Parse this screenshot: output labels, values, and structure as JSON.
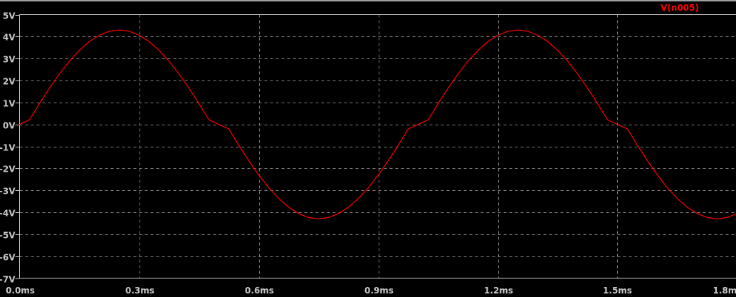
{
  "chart_data": {
    "type": "line",
    "title": "",
    "xlabel": "",
    "ylabel": "",
    "xlim": [
      0.0,
      1.8
    ],
    "ylim": [
      -7,
      5
    ],
    "x_unit": "ms",
    "y_unit": "V",
    "grid": true,
    "legend_position": "top-right",
    "x_ticks": [
      "0.0ms",
      "0.3ms",
      "0.6ms",
      "0.9ms",
      "1.2ms",
      "1.5ms",
      "1.8ms"
    ],
    "x_tick_values": [
      0.0,
      0.3,
      0.6,
      0.9,
      1.2,
      1.5,
      1.8
    ],
    "y_ticks": [
      "5V",
      "4V",
      "3V",
      "2V",
      "1V",
      "0V",
      "-1V",
      "-2V",
      "-3V",
      "-4V",
      "-5V",
      "-6V",
      "-7V"
    ],
    "y_tick_values": [
      5,
      4,
      3,
      2,
      1,
      0,
      -1,
      -2,
      -3,
      -4,
      -5,
      -6,
      -7
    ],
    "series": [
      {
        "name": "V(n005)",
        "color": "#ff0000",
        "x": [
          0,
          0.025,
          0.05,
          0.075,
          0.1,
          0.125,
          0.15,
          0.175,
          0.2,
          0.225,
          0.25,
          0.275,
          0.3,
          0.325,
          0.35,
          0.375,
          0.4,
          0.425,
          0.45,
          0.475,
          0.5,
          0.525,
          0.55,
          0.575,
          0.6,
          0.625,
          0.65,
          0.675,
          0.7,
          0.725,
          0.75,
          0.775,
          0.8,
          0.825,
          0.85,
          0.875,
          0.9,
          0.925,
          0.95,
          0.975,
          1.0,
          1.025,
          1.05,
          1.075,
          1.1,
          1.125,
          1.15,
          1.175,
          1.2,
          1.225,
          1.25,
          1.275,
          1.3,
          1.325,
          1.35,
          1.375,
          1.4,
          1.425,
          1.45,
          1.475,
          1.5,
          1.525,
          1.55,
          1.575,
          1.6,
          1.625,
          1.65,
          1.675,
          1.7,
          1.725,
          1.75,
          1.775,
          1.8
        ],
        "values": [
          0,
          0.21,
          0.95,
          1.65,
          2.3,
          2.88,
          3.37,
          3.77,
          4.06,
          4.24,
          4.3,
          4.24,
          4.06,
          3.77,
          3.37,
          2.88,
          2.3,
          1.65,
          0.95,
          0.21,
          0,
          -0.21,
          -0.95,
          -1.65,
          -2.3,
          -2.88,
          -3.37,
          -3.77,
          -4.06,
          -4.24,
          -4.3,
          -4.24,
          -4.06,
          -3.77,
          -3.37,
          -2.88,
          -2.3,
          -1.65,
          -0.95,
          -0.21,
          0,
          0.21,
          0.95,
          1.65,
          2.3,
          2.88,
          3.37,
          3.77,
          4.06,
          4.24,
          4.3,
          4.24,
          4.06,
          3.77,
          3.37,
          2.88,
          2.3,
          1.65,
          0.95,
          0.21,
          0,
          -0.21,
          -0.95,
          -1.65,
          -2.3,
          -2.88,
          -3.37,
          -3.77,
          -4.06,
          -4.24,
          -4.3,
          -4.24,
          -4.06
        ]
      }
    ]
  },
  "colors": {
    "background": "#000000",
    "axis": "#c8c8c8",
    "grid": "#808080",
    "trace": "#ff0000"
  }
}
